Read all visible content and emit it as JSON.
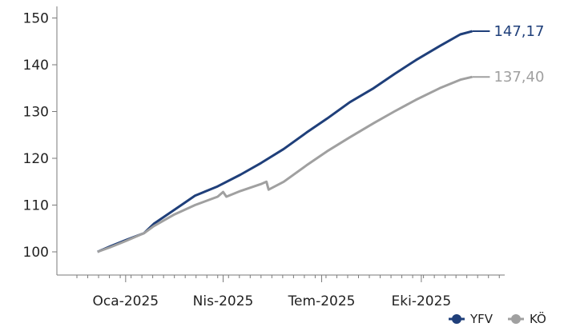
{
  "chart_data": {
    "type": "line",
    "title": "",
    "xlabel": "",
    "ylabel": "",
    "ylim": [
      95,
      155
    ],
    "yticks": [
      100,
      110,
      120,
      130,
      140,
      150
    ],
    "xrange": [
      "2024-12-01",
      "2025-12-31"
    ],
    "xticks": [
      {
        "date": "2025-01-15",
        "label": "Oca-2025"
      },
      {
        "date": "2025-04-15",
        "label": "Nis-2025"
      },
      {
        "date": "2025-07-15",
        "label": "Tem-2025"
      },
      {
        "date": "2025-10-15",
        "label": "Eki-2025"
      }
    ],
    "grid": false,
    "legend_position": "bottom-right",
    "series": [
      {
        "name": "YFV",
        "color": "#1f3f7a",
        "end_label": "147,17",
        "points": [
          [
            "2024-12-20",
            100.0
          ],
          [
            "2025-01-01",
            101.2
          ],
          [
            "2025-01-15",
            102.5
          ],
          [
            "2025-02-01",
            104.0
          ],
          [
            "2025-02-10",
            106.0
          ],
          [
            "2025-03-01",
            109.0
          ],
          [
            "2025-03-20",
            112.0
          ],
          [
            "2025-04-10",
            114.0
          ],
          [
            "2025-05-01",
            116.5
          ],
          [
            "2025-05-20",
            119.0
          ],
          [
            "2025-06-10",
            122.0
          ],
          [
            "2025-07-01",
            125.5
          ],
          [
            "2025-07-20",
            128.5
          ],
          [
            "2025-08-10",
            132.0
          ],
          [
            "2025-09-01",
            135.0
          ],
          [
            "2025-09-20",
            138.0
          ],
          [
            "2025-10-10",
            141.0
          ],
          [
            "2025-11-01",
            144.0
          ],
          [
            "2025-11-20",
            146.5
          ],
          [
            "2025-12-01",
            147.17
          ]
        ]
      },
      {
        "name": "KÖ",
        "color": "#a0a0a0",
        "end_label": "137,40",
        "points": [
          [
            "2024-12-20",
            100.0
          ],
          [
            "2025-01-01",
            101.0
          ],
          [
            "2025-01-15",
            102.3
          ],
          [
            "2025-02-01",
            104.0
          ],
          [
            "2025-02-10",
            105.5
          ],
          [
            "2025-03-01",
            108.0
          ],
          [
            "2025-03-20",
            110.0
          ],
          [
            "2025-04-10",
            111.8
          ],
          [
            "2025-04-15",
            112.8
          ],
          [
            "2025-04-18",
            111.8
          ],
          [
            "2025-05-01",
            113.0
          ],
          [
            "2025-05-20",
            114.5
          ],
          [
            "2025-05-25",
            115.0
          ],
          [
            "2025-05-27",
            113.3
          ],
          [
            "2025-06-10",
            115.0
          ],
          [
            "2025-07-01",
            118.5
          ],
          [
            "2025-07-20",
            121.5
          ],
          [
            "2025-08-10",
            124.5
          ],
          [
            "2025-09-01",
            127.5
          ],
          [
            "2025-09-20",
            130.0
          ],
          [
            "2025-10-10",
            132.5
          ],
          [
            "2025-11-01",
            135.0
          ],
          [
            "2025-11-20",
            136.8
          ],
          [
            "2025-12-01",
            137.4
          ]
        ]
      }
    ]
  }
}
